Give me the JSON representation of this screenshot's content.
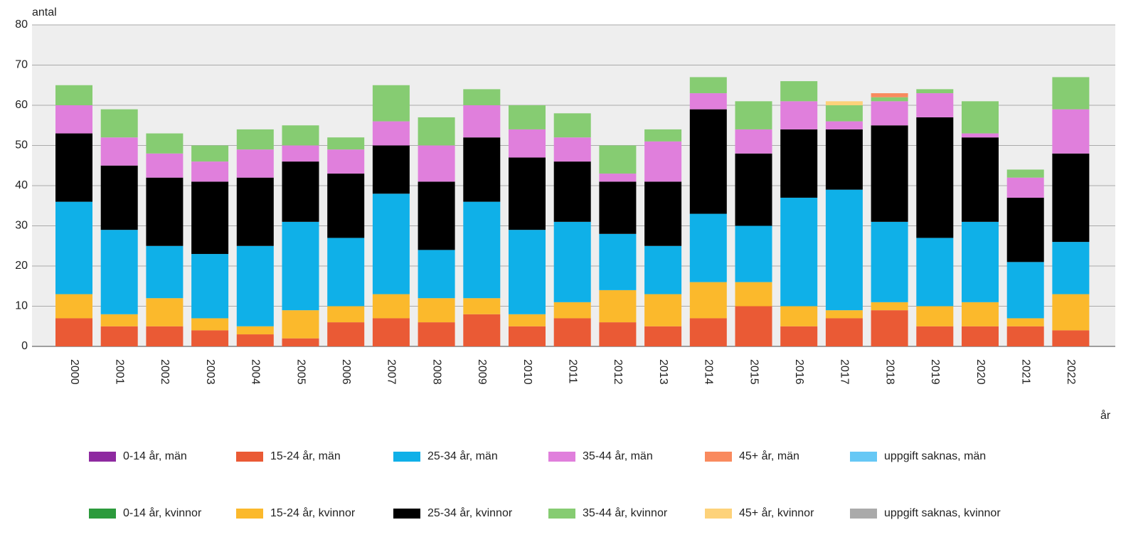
{
  "chart_data": {
    "type": "stacked_bar",
    "y_label": "antal",
    "x_label": "år",
    "categories": [
      "2000",
      "2001",
      "2002",
      "2003",
      "2004",
      "2005",
      "2006",
      "2007",
      "2008",
      "2009",
      "2010",
      "2011",
      "2012",
      "2013",
      "2014",
      "2015",
      "2016",
      "2017",
      "2018",
      "2019",
      "2020",
      "2021",
      "2022"
    ],
    "ylim": [
      0,
      80
    ],
    "yticks": [
      0,
      10,
      20,
      30,
      40,
      50,
      60,
      70,
      80
    ],
    "grid": true,
    "series": [
      {
        "name": "0-14 år, män",
        "color": "#8e2aa0",
        "values": [
          0,
          0,
          0,
          0,
          0,
          0,
          0,
          0,
          0,
          0,
          0,
          0,
          0,
          0,
          0,
          0,
          0,
          0,
          0,
          0,
          0,
          0,
          0
        ]
      },
      {
        "name": "0-14 år, kvinnor",
        "color": "#2c9a3c",
        "values": [
          0,
          0,
          0,
          0,
          0,
          0,
          0,
          0,
          0,
          0,
          0,
          0,
          0,
          0,
          0,
          0,
          0,
          0,
          0,
          0,
          0,
          0,
          0
        ]
      },
      {
        "name": "15-24 år, män",
        "color": "#ea5a35",
        "values": [
          7,
          5,
          5,
          4,
          3,
          2,
          6,
          7,
          6,
          8,
          5,
          7,
          6,
          5,
          7,
          10,
          5,
          7,
          9,
          5,
          5,
          5,
          4
        ]
      },
      {
        "name": "15-24 år, kvinnor",
        "color": "#fbb92c",
        "values": [
          6,
          3,
          7,
          3,
          2,
          7,
          4,
          6,
          6,
          4,
          3,
          4,
          8,
          8,
          9,
          6,
          5,
          2,
          2,
          5,
          6,
          2,
          9
        ]
      },
      {
        "name": "25-34 år, män",
        "color": "#0fb0e8",
        "values": [
          23,
          21,
          13,
          16,
          20,
          22,
          17,
          25,
          12,
          24,
          21,
          20,
          14,
          12,
          17,
          14,
          27,
          30,
          20,
          17,
          20,
          14,
          13
        ]
      },
      {
        "name": "25-34 år, kvinnor",
        "color": "#000000",
        "values": [
          17,
          16,
          17,
          18,
          17,
          15,
          16,
          12,
          17,
          16,
          18,
          15,
          13,
          16,
          26,
          18,
          17,
          15,
          24,
          30,
          21,
          16,
          22
        ]
      },
      {
        "name": "35-44 år, män",
        "color": "#e07fdc",
        "values": [
          7,
          7,
          6,
          5,
          7,
          4,
          6,
          6,
          9,
          8,
          7,
          6,
          2,
          10,
          4,
          6,
          7,
          2,
          6,
          6,
          1,
          5,
          11
        ]
      },
      {
        "name": "35-44 år, kvinnor",
        "color": "#86cc72",
        "values": [
          5,
          7,
          5,
          4,
          5,
          5,
          3,
          9,
          7,
          4,
          6,
          6,
          7,
          3,
          4,
          7,
          5,
          4,
          1,
          1,
          8,
          2,
          8
        ]
      },
      {
        "name": "45+ år, män",
        "color": "#f98a5e",
        "values": [
          0,
          0,
          0,
          0,
          0,
          0,
          0,
          0,
          0,
          0,
          0,
          0,
          0,
          0,
          0,
          0,
          0,
          0,
          1,
          0,
          0,
          0,
          0
        ]
      },
      {
        "name": "45+ år, kvinnor",
        "color": "#fdd27a",
        "values": [
          0,
          0,
          0,
          0,
          0,
          0,
          0,
          0,
          0,
          0,
          0,
          0,
          0,
          0,
          0,
          0,
          0,
          1,
          0,
          0,
          0,
          0,
          0
        ]
      },
      {
        "name": "uppgift saknas, män",
        "color": "#66c8f5",
        "values": [
          0,
          0,
          0,
          0,
          0,
          0,
          0,
          0,
          0,
          0,
          0,
          0,
          0,
          0,
          0,
          0,
          0,
          0,
          0,
          0,
          0,
          0,
          0
        ]
      },
      {
        "name": "uppgift saknas, kvinnor",
        "color": "#aaaaaa",
        "values": [
          0,
          0,
          0,
          0,
          0,
          0,
          0,
          0,
          0,
          0,
          0,
          0,
          0,
          0,
          0,
          0,
          0,
          0,
          0,
          0,
          0,
          0,
          0
        ]
      }
    ]
  }
}
